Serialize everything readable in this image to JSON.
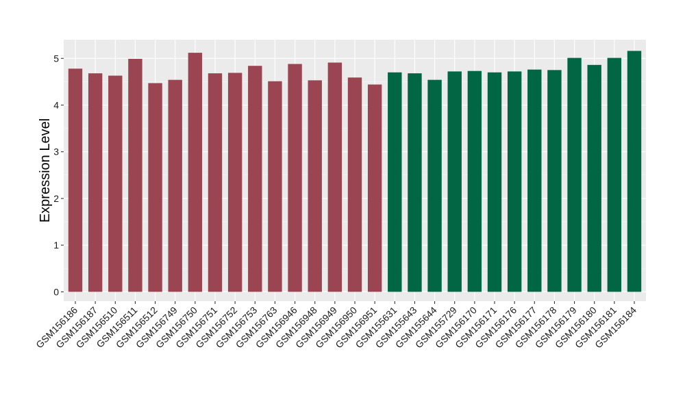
{
  "chart_data": {
    "type": "bar",
    "ylabel": "Expression Level",
    "xlabel": "",
    "ylim": [
      -0.2,
      5.4
    ],
    "yticks": [
      0,
      1,
      2,
      3,
      4,
      5
    ],
    "grid": true,
    "background": "#ebebeb",
    "categories": [
      "GSM156186",
      "GSM156187",
      "GSM156510",
      "GSM156511",
      "GSM156512",
      "GSM156749",
      "GSM156750",
      "GSM156751",
      "GSM156752",
      "GSM156753",
      "GSM156763",
      "GSM156946",
      "GSM156948",
      "GSM156949",
      "GSM156950",
      "GSM156951",
      "GSM155631",
      "GSM155643",
      "GSM155644",
      "GSM155729",
      "GSM156170",
      "GSM156171",
      "GSM156176",
      "GSM156177",
      "GSM156178",
      "GSM156179",
      "GSM156180",
      "GSM156181",
      "GSM156184"
    ],
    "values": [
      4.78,
      4.68,
      4.63,
      4.99,
      4.47,
      4.54,
      5.12,
      4.68,
      4.69,
      4.84,
      4.51,
      4.88,
      4.53,
      4.91,
      4.59,
      4.44,
      4.7,
      4.68,
      4.54,
      4.72,
      4.73,
      4.7,
      4.72,
      4.76,
      4.75,
      5.01,
      4.86,
      5.01,
      5.16
    ],
    "group_colors": [
      "#9b4452",
      "#006644"
    ],
    "group_sizes": [
      16,
      13
    ]
  }
}
